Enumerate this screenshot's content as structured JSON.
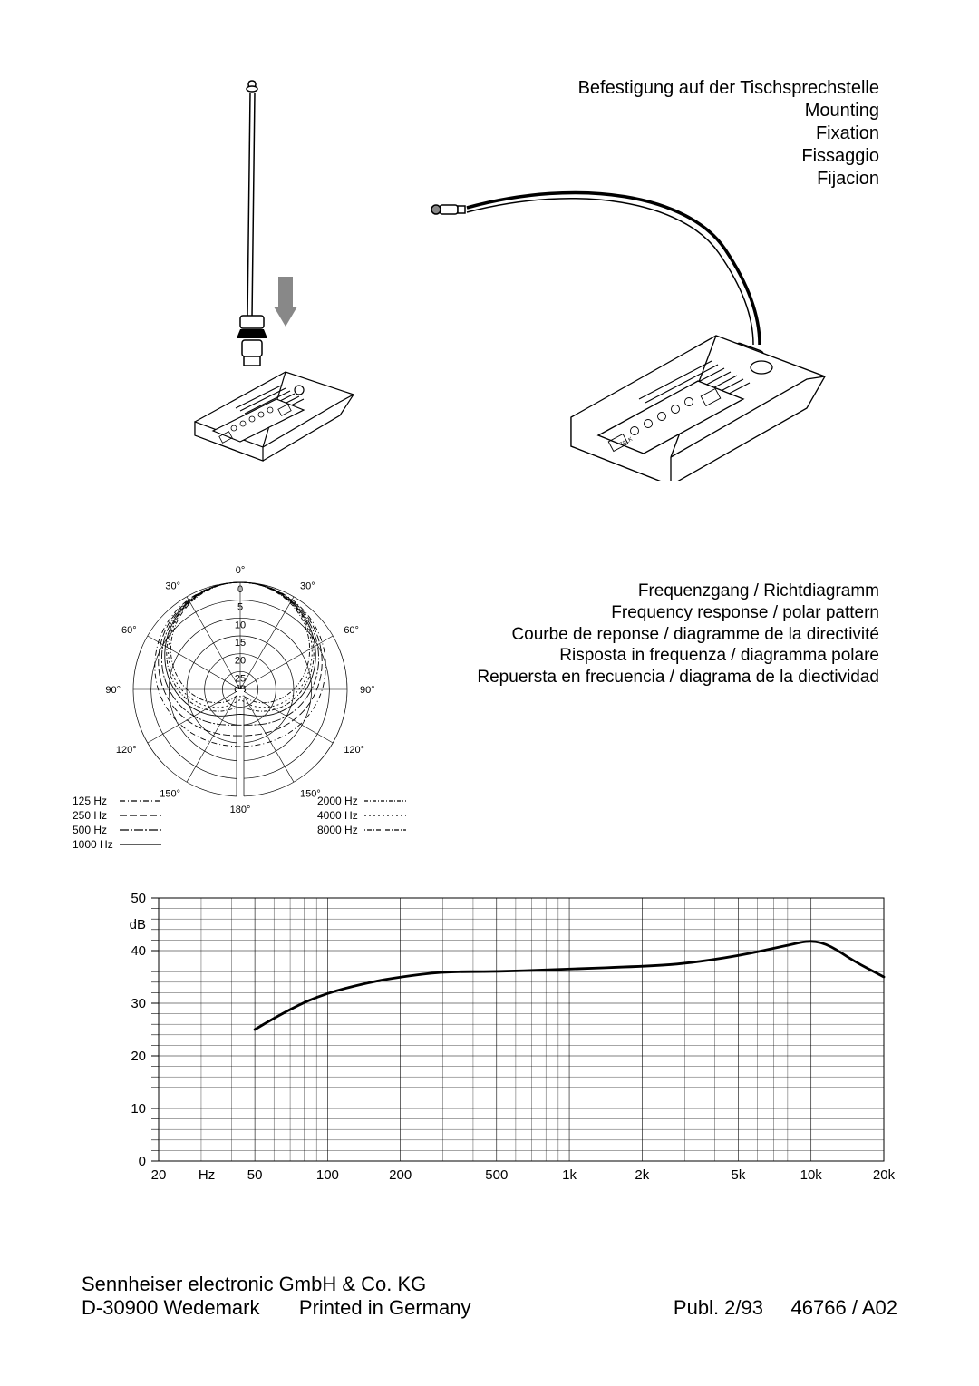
{
  "mounting_labels": {
    "de": "Befestigung auf der Tischsprechstelle",
    "en": "Mounting",
    "fr": "Fixation",
    "it": "Fissaggio",
    "es": "Fijacion"
  },
  "polar_labels": {
    "de": "Frequenzgang / Richtdiagramm",
    "en": "Frequency response / polar pattern",
    "fr": "Courbe de reponse / diagramme de la directivité",
    "it": "Risposta in frequenza / diagramma polare",
    "es": "Repuersta en frecuencia / diagrama de la diectividad"
  },
  "polar_chart": {
    "angle_labels": [
      "0°",
      "30°",
      "30°",
      "60°",
      "60°",
      "90°",
      "90°",
      "120°",
      "120°",
      "150°",
      "150°",
      "180°"
    ],
    "rings_db": [
      0,
      5,
      10,
      15,
      20,
      25
    ],
    "db_label": "dB",
    "ring_color": "#000000",
    "curve_color": "#000000",
    "dash_patterns": {
      "125": "6 3 1 3",
      "250": "8 3",
      "500": "10 2 2 2",
      "1000": "",
      "2000": "4 2 1 2",
      "4000": "2 3",
      "8000": "1 2 5 2"
    },
    "legend_left": [
      {
        "label": "125 Hz",
        "dash": "6 3 1 3"
      },
      {
        "label": "250 Hz",
        "dash": "8 3"
      },
      {
        "label": "500 Hz",
        "dash": "10 2 2 2"
      },
      {
        "label": "1000 Hz",
        "dash": ""
      }
    ],
    "legend_right": [
      {
        "label": "2000 Hz",
        "dash": "4 2 1 2"
      },
      {
        "label": "4000 Hz",
        "dash": "2 3"
      },
      {
        "label": "8000 Hz",
        "dash": "1 2 5 2"
      }
    ]
  },
  "freq_response": {
    "type": "line",
    "ylim": [
      0,
      50
    ],
    "ytick_step": 10,
    "y_unit": "dB",
    "x_unit": "Hz",
    "x_ticks_hz": [
      20,
      50,
      100,
      200,
      500,
      1000,
      2000,
      5000,
      10000,
      20000
    ],
    "x_tick_labels": [
      "20",
      "50",
      "100",
      "200",
      "500",
      "1k",
      "2k",
      "5k",
      "10k",
      "20k"
    ],
    "x_unit_pos_after": 0,
    "line_color": "#000000",
    "line_width": 2.8,
    "grid_color": "#000000",
    "grid_width_major": 0.6,
    "grid_width_minor": 0.35,
    "data": [
      {
        "hz": 50,
        "db": 25
      },
      {
        "hz": 70,
        "db": 29
      },
      {
        "hz": 100,
        "db": 32
      },
      {
        "hz": 150,
        "db": 34
      },
      {
        "hz": 200,
        "db": 35
      },
      {
        "hz": 300,
        "db": 36
      },
      {
        "hz": 500,
        "db": 36
      },
      {
        "hz": 1000,
        "db": 36.5
      },
      {
        "hz": 2000,
        "db": 37
      },
      {
        "hz": 3000,
        "db": 37.5
      },
      {
        "hz": 5000,
        "db": 39
      },
      {
        "hz": 8000,
        "db": 41
      },
      {
        "hz": 10000,
        "db": 42
      },
      {
        "hz": 12000,
        "db": 41
      },
      {
        "hz": 15000,
        "db": 38
      },
      {
        "hz": 20000,
        "db": 35
      }
    ]
  },
  "footer": {
    "company": "Sennheiser electronic GmbH & Co. KG",
    "address": "D-30900 Wedemark",
    "printed": "Printed in Germany",
    "pub": "Publ. 2/93",
    "code": "46766 / A02"
  }
}
